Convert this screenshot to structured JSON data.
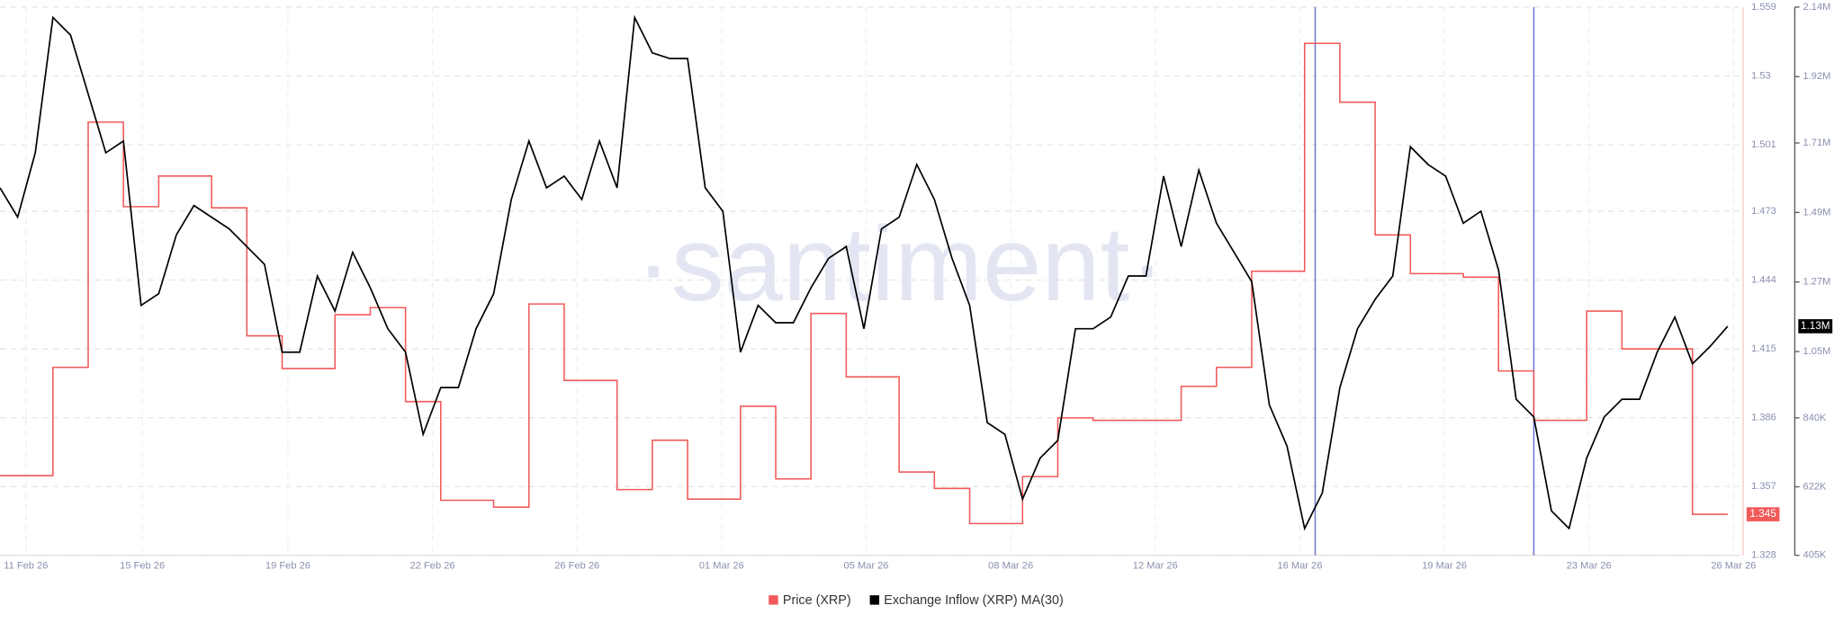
{
  "chart_data": {
    "type": "line",
    "watermark": "·santiment·",
    "xlim": [
      0,
      98.67
    ],
    "xticks": [
      {
        "value": 1.47,
        "label": "11 Feb 26"
      },
      {
        "value": 8.07,
        "label": "15 Feb 26"
      },
      {
        "value": 16.33,
        "label": "19 Feb 26"
      },
      {
        "value": 24.53,
        "label": "22 Feb 26"
      },
      {
        "value": 32.73,
        "label": "26 Feb 26"
      },
      {
        "value": 40.93,
        "label": "01 Mar 26"
      },
      {
        "value": 49.13,
        "label": "05 Mar 26"
      },
      {
        "value": 57.33,
        "label": "08 Mar 26"
      },
      {
        "value": 65.53,
        "label": "12 Mar 26"
      },
      {
        "value": 73.73,
        "label": "16 Mar 26"
      },
      {
        "value": 81.93,
        "label": "19 Mar 26"
      },
      {
        "value": 90.13,
        "label": "23 Mar 26"
      },
      {
        "value": 98.33,
        "label": "26 Mar 26"
      }
    ],
    "vertical_markers": [
      74.6,
      87
    ],
    "ylim": [
      1.328,
      1.559
    ],
    "yticks": [
      1.328,
      1.357,
      1.386,
      1.415,
      1.444,
      1.473,
      1.501,
      1.53,
      1.559
    ],
    "y2lim": [
      405000,
      2140000
    ],
    "y2ticks": [
      {
        "value": 405000,
        "label": "405K"
      },
      {
        "value": 622000,
        "label": "622K"
      },
      {
        "value": 840000,
        "label": "840K"
      },
      {
        "value": 1050000,
        "label": "1.05M"
      },
      {
        "value": 1270000,
        "label": "1.27M"
      },
      {
        "value": 1490000,
        "label": "1.49M"
      },
      {
        "value": 1710000,
        "label": "1.71M"
      },
      {
        "value": 1920000,
        "label": "1.92M"
      },
      {
        "value": 2140000,
        "label": "2.14M"
      }
    ],
    "grid": true,
    "series": [
      {
        "name": "Price (XRP)",
        "color": "#f25a5a",
        "step": true,
        "last_value_label": "1.345",
        "values": [
          1.3616,
          1.3616,
          1.3616,
          1.4072,
          1.4072,
          1.5105,
          1.5105,
          1.4749,
          1.4749,
          1.4878,
          1.4878,
          1.4878,
          1.4744,
          1.4744,
          1.4205,
          1.4205,
          1.4067,
          1.4067,
          1.4067,
          1.4294,
          1.4294,
          1.4324,
          1.4324,
          1.3928,
          1.3928,
          1.3512,
          1.3512,
          1.3512,
          1.3483,
          1.3483,
          1.4339,
          1.4339,
          1.4017,
          1.4017,
          1.4017,
          1.3557,
          1.3557,
          1.3765,
          1.3765,
          1.3517,
          1.3517,
          1.3517,
          1.3908,
          1.3908,
          1.3602,
          1.3602,
          1.4299,
          1.4299,
          1.4032,
          1.4032,
          1.4032,
          1.3631,
          1.3631,
          1.3562,
          1.3562,
          1.3414,
          1.3414,
          1.3414,
          1.3612,
          1.3612,
          1.3859,
          1.3859,
          1.3849,
          1.3849,
          1.3849,
          1.3849,
          1.3849,
          1.3992,
          1.3992,
          1.4072,
          1.4072,
          1.4477,
          1.4477,
          1.4477,
          1.5437,
          1.5437,
          1.5189,
          1.5189,
          1.463,
          1.463,
          1.4467,
          1.4467,
          1.4467,
          1.4452,
          1.4452,
          1.4057,
          1.4057,
          1.3849,
          1.3849,
          1.3849,
          1.4309,
          1.4309,
          1.415,
          1.415,
          1.415,
          1.415,
          1.3453,
          1.3453,
          1.3453
        ]
      },
      {
        "name": "Exchange Inflow (XRP) MA(30)",
        "color": "#000000",
        "axis": "y2",
        "last_value_label": "1.13M",
        "values": [
          1568000,
          1475000,
          1679000,
          2107000,
          2051000,
          1865000,
          1679000,
          1716000,
          1196000,
          1233000,
          1419000,
          1512000,
          1475000,
          1438000,
          1382000,
          1326000,
          1048000,
          1048000,
          1289000,
          1178000,
          1364000,
          1252000,
          1122000,
          1048000,
          788000,
          936000,
          936000,
          1122000,
          1233000,
          1531000,
          1716000,
          1568000,
          1605000,
          1531000,
          1716000,
          1568000,
          2107000,
          1995000,
          1977000,
          1977000,
          1568000,
          1494000,
          1048000,
          1196000,
          1141000,
          1141000,
          1252000,
          1345000,
          1382000,
          1122000,
          1438000,
          1475000,
          1642000,
          1531000,
          1345000,
          1196000,
          825000,
          788000,
          583000,
          713000,
          769000,
          1122000,
          1122000,
          1159000,
          1289000,
          1289000,
          1605000,
          1382000,
          1624000,
          1456000,
          1364000,
          1271000,
          881000,
          751000,
          490000,
          602000,
          936000,
          1122000,
          1215000,
          1289000,
          1698000,
          1642000,
          1605000,
          1456000,
          1494000,
          1308000,
          899000,
          843000,
          546000,
          490000,
          713000,
          843000,
          899000,
          899000,
          1048000,
          1159000,
          1011000,
          1066000,
          1130000
        ]
      }
    ]
  }
}
